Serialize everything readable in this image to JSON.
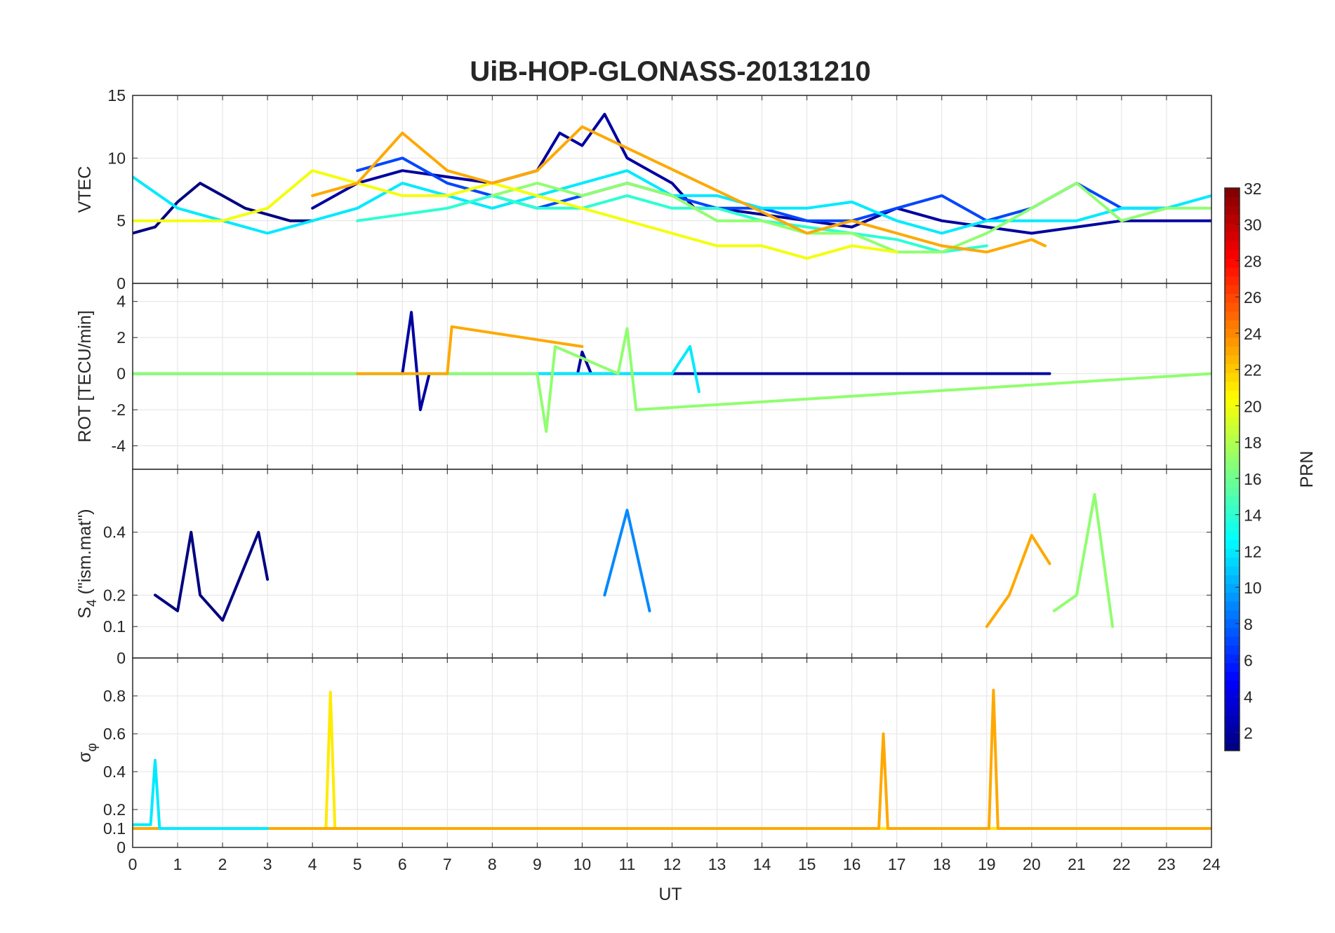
{
  "chart_data": {
    "type": "line",
    "title": "UiB-HOP-GLONASS-20131210",
    "xlabel": "UT",
    "xlim": [
      0,
      24
    ],
    "xticks": [
      "0",
      "1",
      "2",
      "3",
      "4",
      "5",
      "6",
      "7",
      "8",
      "9",
      "10",
      "11",
      "12",
      "13",
      "14",
      "15",
      "16",
      "17",
      "18",
      "19",
      "20",
      "21",
      "22",
      "23",
      "24"
    ],
    "grid": true,
    "colormap": "jet",
    "colorbar": {
      "label": "PRN",
      "range": [
        1,
        32
      ],
      "ticks": [
        "2",
        "4",
        "6",
        "8",
        "10",
        "12",
        "14",
        "16",
        "18",
        "20",
        "22",
        "24",
        "26",
        "28",
        "30",
        "32"
      ],
      "placement": "right"
    },
    "panels": [
      {
        "ylabel": "VTEC",
        "ylim": [
          0,
          15
        ],
        "yticks": [
          "0",
          "5",
          "10",
          "15"
        ],
        "series": [
          {
            "prn": 1,
            "x": [
              0,
              0.5,
              1,
              1.5,
              2,
              2.5,
              3,
              3.5,
              4
            ],
            "y": [
              4,
              4.5,
              6.5,
              8,
              7,
              6,
              5.5,
              5,
              5
            ]
          },
          {
            "prn": 2,
            "x": [
              4,
              5,
              6,
              7,
              8,
              9,
              9.5,
              10,
              10.5,
              11,
              11.5,
              12,
              12.5,
              13,
              14,
              15,
              16,
              17,
              18,
              19,
              20,
              21,
              22,
              23,
              24
            ],
            "y": [
              6,
              8,
              9,
              8.5,
              8,
              9,
              12,
              11,
              13.5,
              10,
              9,
              8,
              6,
              6,
              5.5,
              5,
              4.5,
              6,
              5,
              4.5,
              4,
              4.5,
              5,
              5,
              5
            ]
          },
          {
            "prn": 7,
            "x": [
              5,
              6,
              7,
              8,
              9,
              10,
              11,
              12,
              13,
              14,
              15,
              16,
              17,
              18,
              19,
              20,
              21,
              22,
              23
            ],
            "y": [
              9,
              10,
              8,
              7,
              6,
              7,
              8,
              7,
              6,
              6,
              5,
              5,
              6,
              7,
              5,
              6,
              8,
              6,
              6
            ]
          },
          {
            "prn": 12,
            "x": [
              0,
              1,
              2,
              3,
              4,
              5,
              6,
              7,
              8,
              9,
              10,
              11,
              12,
              13,
              14,
              15,
              16,
              17,
              18,
              19,
              20,
              21,
              22,
              23,
              24
            ],
            "y": [
              8.5,
              6,
              5,
              4,
              5,
              6,
              8,
              7,
              6,
              7,
              8,
              9,
              7,
              7,
              6,
              6,
              6.5,
              5,
              4,
              5,
              5,
              5,
              6,
              6,
              7
            ]
          },
          {
            "prn": 14,
            "x": [
              5,
              6,
              7,
              8,
              9,
              10,
              11,
              12,
              13,
              14,
              15,
              16,
              17,
              18,
              19
            ],
            "y": [
              5,
              5.5,
              6,
              7,
              6,
              6,
              7,
              6,
              6,
              5,
              4.5,
              4,
              3.5,
              2.5,
              3
            ]
          },
          {
            "prn": 17,
            "x": [
              8,
              9,
              10,
              11,
              12,
              13,
              14,
              15,
              16,
              17,
              18,
              19,
              20,
              21,
              22,
              23,
              24
            ],
            "y": [
              7,
              8,
              7,
              8,
              7,
              5,
              5,
              4,
              4,
              2.5,
              2.5,
              4,
              6,
              8,
              5,
              6,
              6
            ]
          },
          {
            "prn": 20,
            "x": [
              0,
              1,
              2,
              3,
              4,
              5,
              6,
              7,
              8,
              13,
              14,
              15,
              16,
              17
            ],
            "y": [
              5,
              5,
              5,
              6,
              9,
              8,
              7,
              7,
              8,
              3,
              3,
              2,
              3,
              2.5
            ]
          },
          {
            "prn": 23,
            "x": [
              4,
              5,
              6,
              7,
              8,
              9,
              10,
              15,
              16,
              17,
              18,
              19,
              20,
              20.3
            ],
            "y": [
              7,
              8,
              12,
              9,
              8,
              9,
              12.5,
              4,
              5,
              4,
              3,
              2.5,
              3.5,
              3
            ]
          }
        ]
      },
      {
        "ylabel": "ROT [TECU/min]",
        "ylim": [
          -5.3,
          5
        ],
        "yticks": [
          "-4",
          "-2",
          "0",
          "2",
          "4"
        ],
        "series": [
          {
            "prn": 2,
            "x": [
              0,
              6,
              6.2,
              6.4,
              6.6,
              9.9,
              10,
              10.2,
              20,
              20.4
            ],
            "y": [
              0,
              0,
              3.4,
              -2,
              0,
              0,
              1.2,
              0,
              0,
              0
            ]
          },
          {
            "prn": 12,
            "x": [
              0,
              12,
              12.4,
              12.6
            ],
            "y": [
              0,
              0,
              1.5,
              -1
            ]
          },
          {
            "prn": 17,
            "x": [
              0,
              9,
              9.2,
              9.4,
              10.8,
              11,
              11.2,
              24
            ],
            "y": [
              0,
              0,
              -3.2,
              1.5,
              0,
              2.5,
              -2,
              0
            ]
          },
          {
            "prn": 23,
            "x": [
              5,
              7,
              7.1,
              10
            ],
            "y": [
              0,
              0,
              2.6,
              1.5
            ]
          }
        ]
      },
      {
        "ylabel": "S",
        "ylabel_subscript": "4",
        "ylabel_suffix": " (\"ism.mat\")",
        "ylim": [
          0,
          0.6
        ],
        "yticks": [
          "0",
          "0.1",
          "0.2",
          "0.4"
        ],
        "series": [
          {
            "prn": 1,
            "x": [
              0.5,
              1,
              1.3,
              1.5,
              2,
              2.8,
              3
            ],
            "y": [
              0.2,
              0.15,
              0.4,
              0.2,
              0.12,
              0.4,
              0.25
            ]
          },
          {
            "prn": 9,
            "x": [
              10.5,
              11,
              11.5
            ],
            "y": [
              0.2,
              0.47,
              0.15
            ]
          },
          {
            "prn": 17,
            "x": [
              20.5,
              21,
              21.4,
              21.8
            ],
            "y": [
              0.15,
              0.2,
              0.52,
              0.1
            ]
          },
          {
            "prn": 23,
            "x": [
              19,
              19.5,
              20,
              20.4
            ],
            "y": [
              0.1,
              0.2,
              0.39,
              0.3
            ]
          }
        ]
      },
      {
        "ylabel": "σ",
        "ylabel_subscript": "φ",
        "ylim": [
          0,
          1
        ],
        "yticks": [
          "0",
          "0.1",
          "0.2",
          "0.4",
          "0.6",
          "0.8"
        ],
        "series": [
          {
            "prn": 21,
            "x": [
              0,
              4.3,
              4.4,
              4.5,
              24
            ],
            "y": [
              0.1,
              0.1,
              0.82,
              0.1,
              0.1
            ]
          },
          {
            "prn": 23,
            "x": [
              0,
              16.6,
              16.7,
              16.8,
              19.05,
              19.15,
              19.25,
              24
            ],
            "y": [
              0.1,
              0.1,
              0.6,
              0.1,
              0.1,
              0.83,
              0.1,
              0.1
            ]
          },
          {
            "prn": 12,
            "x": [
              0,
              0.4,
              0.5,
              0.6,
              3
            ],
            "y": [
              0.12,
              0.12,
              0.46,
              0.1,
              0.1
            ]
          }
        ]
      }
    ]
  }
}
